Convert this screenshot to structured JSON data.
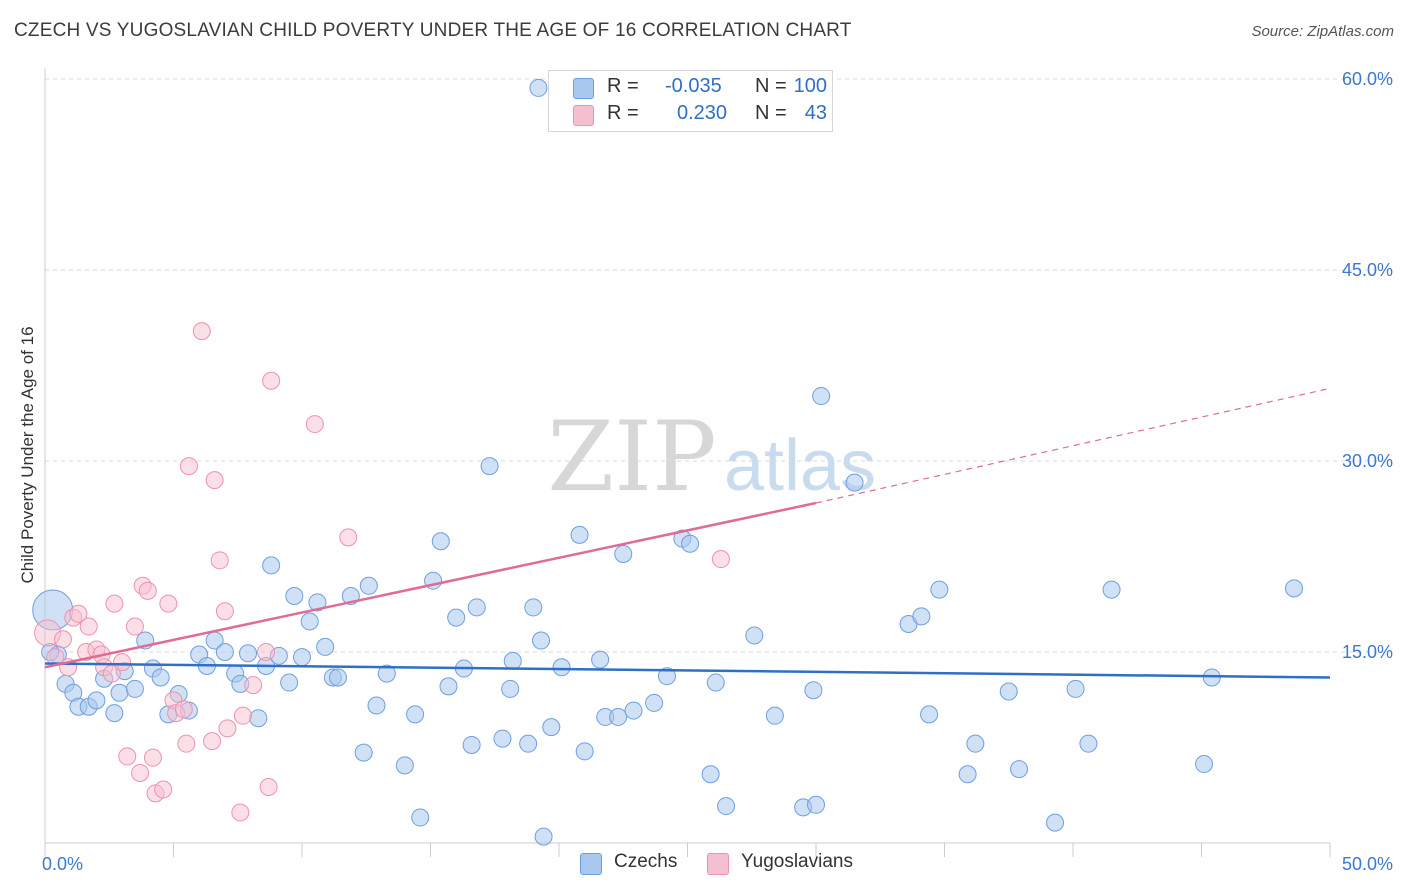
{
  "header": {
    "title": "CZECH VS YUGOSLAVIAN CHILD POVERTY UNDER THE AGE OF 16 CORRELATION CHART",
    "source": "Source: ZipAtlas.com"
  },
  "watermark": {
    "zip": "ZIP",
    "atlas": "atlas"
  },
  "colors": {
    "czech_fill": "#a9c8ef",
    "czech_stroke": "#6d9fe0",
    "czech_line": "#2f6fc6",
    "yugo_fill": "#f6bfd0",
    "yugo_stroke": "#ee92ae",
    "yugo_line": "#e06b95",
    "grid": "#d9d9d9",
    "tick_text": "#3b78cf"
  },
  "legend": {
    "rows": [
      {
        "series": "Czechs",
        "r_label": "R =",
        "r_value": "-0.035",
        "n_label": "N =",
        "n_value": "100"
      },
      {
        "series": "Yugoslavians",
        "r_label": "R =",
        "r_value": "0.230",
        "n_label": "N =",
        "n_value": "43"
      }
    ]
  },
  "bottom_legend": {
    "czech": "Czechs",
    "yugo": "Yugoslavians"
  },
  "chart_data": {
    "type": "scatter",
    "title": "CZECH VS YUGOSLAVIAN CHILD POVERTY UNDER THE AGE OF 16 CORRELATION CHART",
    "xlabel": "",
    "ylabel": "Child Poverty Under the Age of 16",
    "xlim": [
      0,
      50
    ],
    "ylim": [
      0,
      60
    ],
    "x_tick_labels": [
      "0.0%",
      "50.0%"
    ],
    "y_ticks": [
      15,
      30,
      45,
      60
    ],
    "y_tick_labels": [
      "15.0%",
      "30.0%",
      "45.0%",
      "60.0%"
    ],
    "grid": true,
    "series": [
      {
        "name": "Czechs",
        "regression": {
          "x_start": 0,
          "y_start": 14.1,
          "x_end": 50,
          "y_end": 13.0
        },
        "points": [
          [
            0.3,
            18.3
          ],
          [
            0.5,
            14.8
          ],
          [
            0.8,
            12.5
          ],
          [
            1.1,
            11.8
          ],
          [
            1.3,
            10.7
          ],
          [
            1.7,
            10.7
          ],
          [
            2.0,
            11.2
          ],
          [
            2.3,
            12.9
          ],
          [
            2.7,
            10.2
          ],
          [
            2.9,
            11.8
          ],
          [
            3.1,
            13.5
          ],
          [
            3.5,
            12.1
          ],
          [
            3.9,
            15.9
          ],
          [
            4.2,
            13.7
          ],
          [
            4.5,
            13.0
          ],
          [
            4.8,
            10.1
          ],
          [
            5.2,
            11.7
          ],
          [
            5.6,
            10.4
          ],
          [
            6.0,
            14.8
          ],
          [
            6.3,
            13.9
          ],
          [
            6.6,
            15.9
          ],
          [
            7.0,
            15.0
          ],
          [
            7.4,
            13.3
          ],
          [
            7.6,
            12.5
          ],
          [
            7.9,
            14.9
          ],
          [
            8.3,
            9.8
          ],
          [
            8.6,
            13.9
          ],
          [
            8.8,
            21.8
          ],
          [
            9.1,
            14.7
          ],
          [
            9.5,
            12.6
          ],
          [
            9.7,
            19.4
          ],
          [
            10.0,
            14.6
          ],
          [
            10.3,
            17.4
          ],
          [
            10.6,
            18.9
          ],
          [
            10.9,
            15.4
          ],
          [
            11.2,
            13.0
          ],
          [
            11.4,
            13.0
          ],
          [
            11.9,
            19.4
          ],
          [
            12.4,
            7.1
          ],
          [
            12.6,
            20.2
          ],
          [
            12.9,
            10.8
          ],
          [
            13.3,
            13.3
          ],
          [
            14.0,
            6.1
          ],
          [
            14.4,
            10.1
          ],
          [
            14.6,
            2.0
          ],
          [
            15.1,
            20.6
          ],
          [
            15.4,
            23.7
          ],
          [
            15.7,
            12.3
          ],
          [
            16.0,
            17.7
          ],
          [
            16.3,
            13.7
          ],
          [
            16.6,
            7.7
          ],
          [
            16.8,
            18.5
          ],
          [
            17.3,
            29.6
          ],
          [
            17.8,
            8.2
          ],
          [
            18.1,
            12.1
          ],
          [
            18.2,
            14.3
          ],
          [
            18.8,
            7.8
          ],
          [
            19.0,
            18.5
          ],
          [
            19.3,
            15.9
          ],
          [
            19.7,
            9.1
          ],
          [
            19.2,
            59.3
          ],
          [
            19.4,
            0.5
          ],
          [
            20.1,
            13.8
          ],
          [
            20.8,
            24.2
          ],
          [
            21.0,
            7.2
          ],
          [
            21.6,
            14.4
          ],
          [
            21.8,
            9.9
          ],
          [
            22.3,
            9.9
          ],
          [
            22.5,
            22.7
          ],
          [
            22.9,
            10.4
          ],
          [
            23.7,
            11.0
          ],
          [
            24.2,
            13.1
          ],
          [
            24.8,
            23.9
          ],
          [
            25.1,
            23.5
          ],
          [
            25.9,
            5.4
          ],
          [
            26.1,
            12.6
          ],
          [
            26.5,
            2.9
          ],
          [
            27.6,
            16.3
          ],
          [
            28.4,
            10.0
          ],
          [
            29.5,
            2.8
          ],
          [
            29.9,
            12.0
          ],
          [
            30.2,
            35.1
          ],
          [
            30.0,
            3.0
          ],
          [
            31.5,
            28.3
          ],
          [
            33.6,
            17.2
          ],
          [
            34.1,
            17.8
          ],
          [
            34.4,
            10.1
          ],
          [
            34.8,
            19.9
          ],
          [
            35.9,
            5.4
          ],
          [
            36.2,
            7.8
          ],
          [
            37.5,
            11.9
          ],
          [
            37.9,
            5.8
          ],
          [
            39.3,
            1.6
          ],
          [
            40.1,
            12.1
          ],
          [
            40.6,
            7.8
          ],
          [
            41.5,
            19.9
          ],
          [
            45.1,
            6.2
          ],
          [
            45.4,
            13.0
          ],
          [
            48.6,
            20.0
          ],
          [
            0.2,
            15.0
          ]
        ]
      },
      {
        "name": "Yugoslavians",
        "regression": {
          "x_start": 0,
          "y_start": 13.8,
          "x_end": 30,
          "y_end": 26.7
        },
        "regression_dashed_to": {
          "x": 50,
          "y": 35.7
        },
        "points": [
          [
            0.1,
            16.5
          ],
          [
            0.4,
            14.6
          ],
          [
            0.7,
            16.0
          ],
          [
            0.9,
            13.8
          ],
          [
            1.1,
            17.7
          ],
          [
            1.3,
            18.0
          ],
          [
            1.6,
            15.0
          ],
          [
            1.7,
            17.0
          ],
          [
            2.0,
            15.2
          ],
          [
            2.2,
            14.8
          ],
          [
            2.3,
            13.8
          ],
          [
            2.6,
            13.3
          ],
          [
            2.7,
            18.8
          ],
          [
            3.0,
            14.2
          ],
          [
            3.2,
            6.8
          ],
          [
            3.5,
            17.0
          ],
          [
            3.7,
            5.5
          ],
          [
            3.8,
            20.2
          ],
          [
            4.0,
            19.8
          ],
          [
            4.2,
            6.7
          ],
          [
            4.3,
            3.9
          ],
          [
            4.6,
            4.2
          ],
          [
            4.8,
            18.8
          ],
          [
            5.0,
            11.2
          ],
          [
            5.1,
            10.2
          ],
          [
            5.4,
            10.5
          ],
          [
            5.5,
            7.8
          ],
          [
            5.6,
            29.6
          ],
          [
            6.1,
            40.2
          ],
          [
            6.5,
            8.0
          ],
          [
            6.6,
            28.5
          ],
          [
            6.8,
            22.2
          ],
          [
            7.0,
            18.2
          ],
          [
            7.1,
            9.0
          ],
          [
            7.6,
            2.4
          ],
          [
            7.7,
            10.0
          ],
          [
            8.1,
            12.4
          ],
          [
            8.6,
            15.0
          ],
          [
            8.7,
            4.4
          ],
          [
            8.8,
            36.3
          ],
          [
            10.5,
            32.9
          ],
          [
            11.8,
            24.0
          ],
          [
            26.3,
            22.3
          ]
        ]
      }
    ]
  }
}
